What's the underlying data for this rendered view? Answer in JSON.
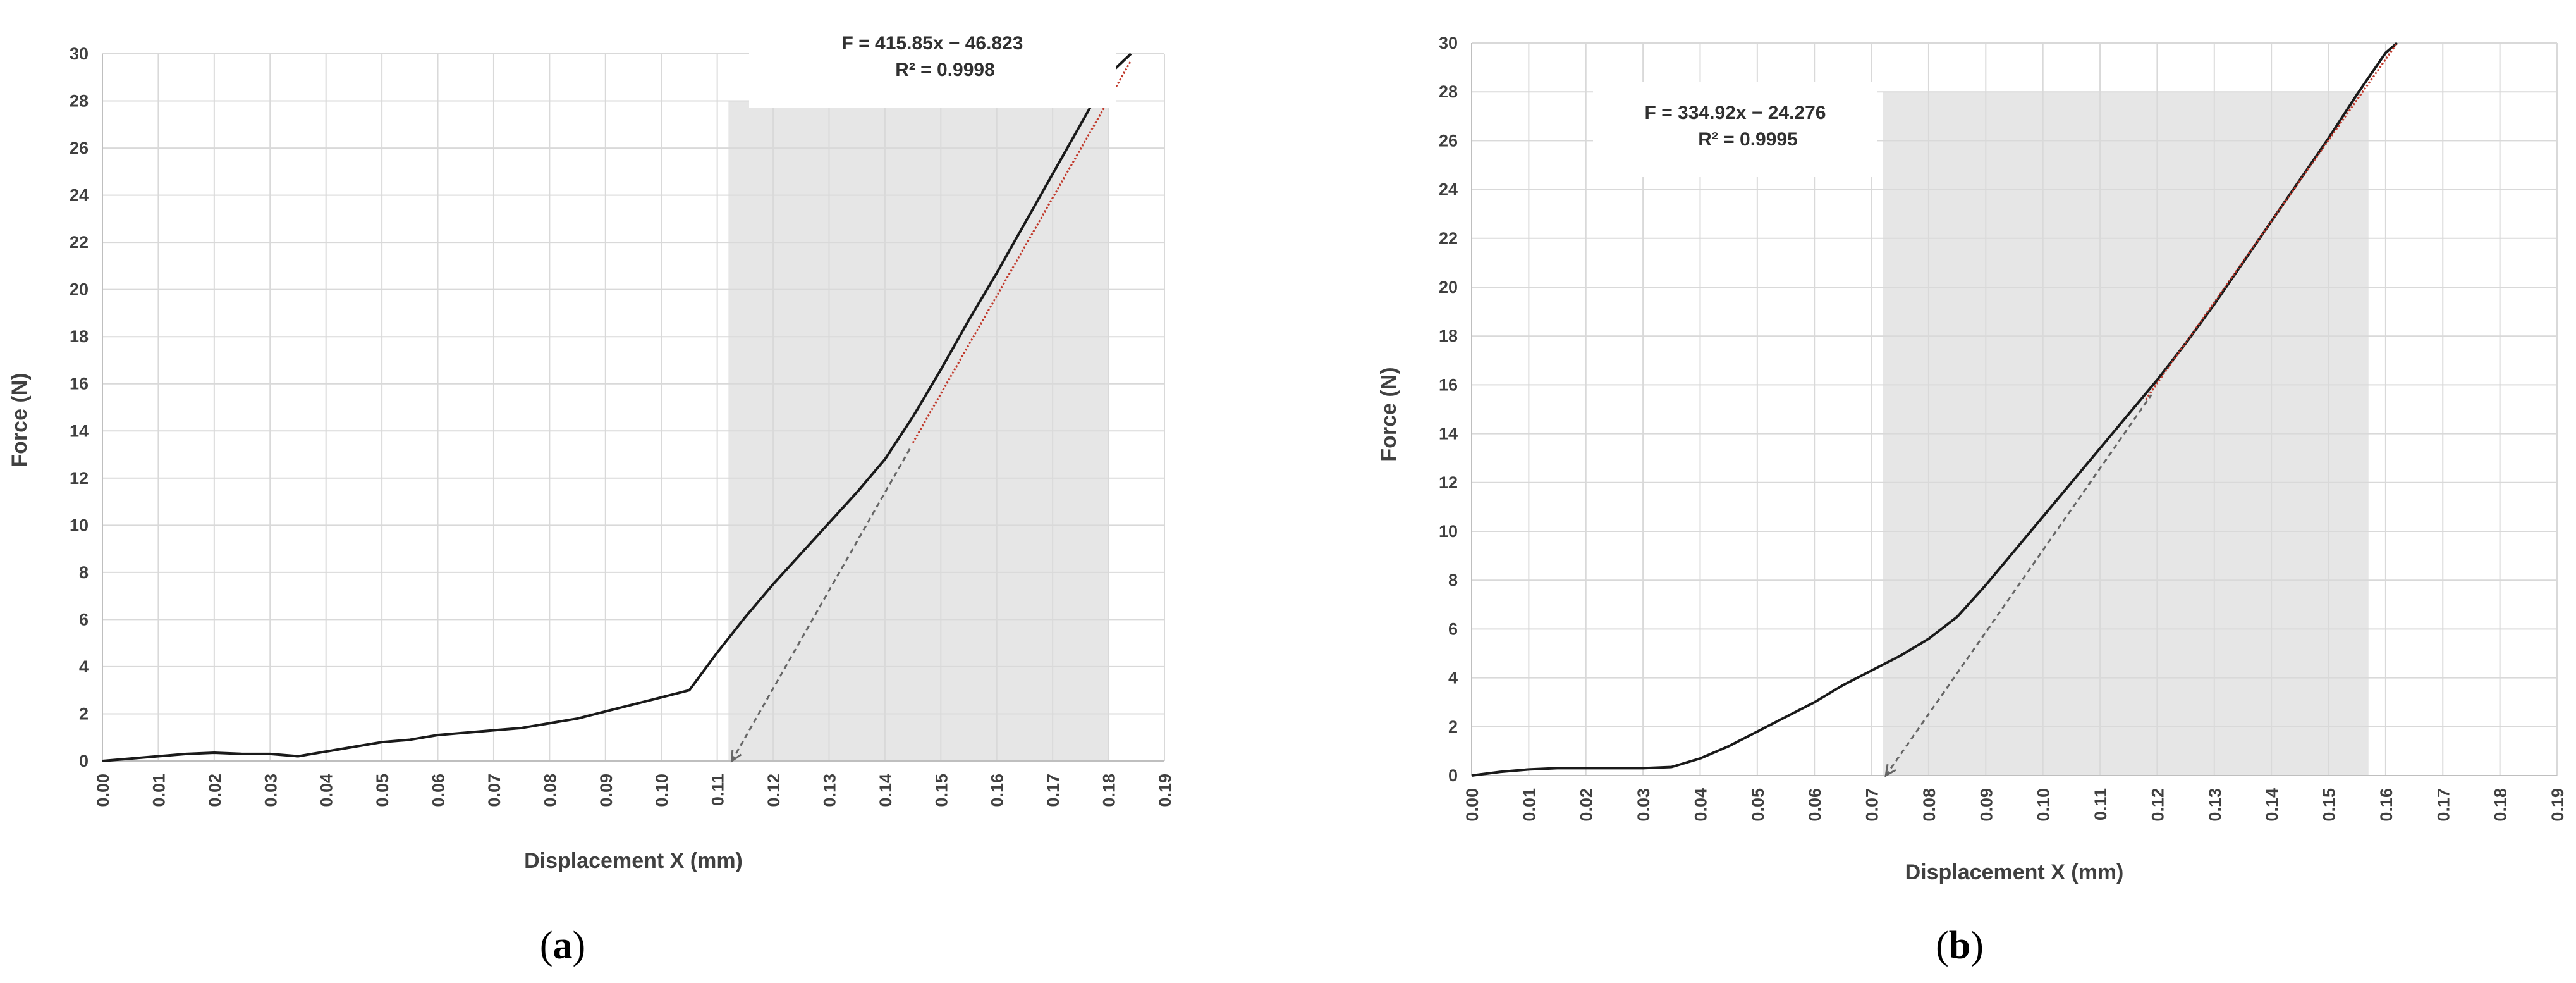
{
  "chart_data": [
    {
      "type": "line",
      "panel_label": "(a)",
      "panel_label_parts": {
        "open": "(",
        "letter": "a",
        "close": ")"
      },
      "xlabel": "Displacement X (mm)",
      "ylabel": "Force (N)",
      "xlim": [
        0.0,
        0.19
      ],
      "ylim": [
        0,
        30
      ],
      "x_ticks": [
        "0.00",
        "0.01",
        "0.02",
        "0.03",
        "0.04",
        "0.05",
        "0.06",
        "0.07",
        "0.08",
        "0.09",
        "0.10",
        "0.11",
        "0.12",
        "0.13",
        "0.14",
        "0.15",
        "0.16",
        "0.17",
        "0.18",
        "0.19"
      ],
      "y_ticks": [
        "0",
        "2",
        "4",
        "6",
        "8",
        "10",
        "12",
        "14",
        "16",
        "18",
        "20",
        "22",
        "24",
        "26",
        "28",
        "30"
      ],
      "grid": true,
      "shaded_region_x": [
        0.112,
        0.18
      ],
      "shaded_region_y": [
        0,
        28
      ],
      "annotation": {
        "equation": "F = 415.85x − 46.823",
        "r2": "R² = 0.9998"
      },
      "series": [
        {
          "role": "measured",
          "color": "#1a1a1a",
          "x": [
            0.0,
            0.005,
            0.01,
            0.015,
            0.02,
            0.025,
            0.03,
            0.035,
            0.04,
            0.045,
            0.05,
            0.055,
            0.06,
            0.065,
            0.07,
            0.075,
            0.08,
            0.085,
            0.09,
            0.095,
            0.1,
            0.105,
            0.11,
            0.115,
            0.12,
            0.125,
            0.13,
            0.135,
            0.14,
            0.145,
            0.15,
            0.155,
            0.16,
            0.165,
            0.17,
            0.175,
            0.18,
            0.184
          ],
          "y": [
            0.0,
            0.1,
            0.2,
            0.3,
            0.35,
            0.3,
            0.3,
            0.2,
            0.4,
            0.6,
            0.8,
            0.9,
            1.1,
            1.2,
            1.3,
            1.4,
            1.6,
            1.8,
            2.1,
            2.4,
            2.7,
            3.0,
            4.6,
            6.1,
            7.5,
            8.8,
            10.1,
            11.4,
            12.8,
            14.6,
            16.6,
            18.7,
            20.7,
            22.8,
            24.9,
            27.0,
            29.1,
            30.0
          ]
        },
        {
          "role": "linear-fit",
          "color": "#c0392b",
          "x": [
            0.145,
            0.184
          ],
          "y": [
            13.5,
            29.7
          ]
        },
        {
          "role": "extension",
          "color": "#666666",
          "dashed": true,
          "x": [
            0.1126,
            0.1446
          ],
          "y": [
            0.0,
            13.3
          ]
        }
      ]
    },
    {
      "type": "line",
      "panel_label": "(b)",
      "panel_label_parts": {
        "open": "(",
        "letter": "b",
        "close": ")"
      },
      "xlabel": "Displacement X (mm)",
      "ylabel": "Force (N)",
      "xlim": [
        0.0,
        0.19
      ],
      "ylim": [
        0,
        30
      ],
      "x_ticks": [
        "0.00",
        "0.01",
        "0.02",
        "0.03",
        "0.04",
        "0.05",
        "0.06",
        "0.07",
        "0.08",
        "0.09",
        "0.10",
        "0.11",
        "0.12",
        "0.13",
        "0.14",
        "0.15",
        "0.16",
        "0.17",
        "0.18",
        "0.19"
      ],
      "y_ticks": [
        "0",
        "2",
        "4",
        "6",
        "8",
        "10",
        "12",
        "14",
        "16",
        "18",
        "20",
        "22",
        "24",
        "26",
        "28",
        "30"
      ],
      "grid": true,
      "shaded_region_x": [
        0.072,
        0.157
      ],
      "shaded_region_y": [
        0,
        28
      ],
      "annotation": {
        "equation": "F = 334.92x − 24.276",
        "r2": "R² = 0.9995"
      },
      "series": [
        {
          "role": "measured",
          "color": "#1a1a1a",
          "x": [
            0.0,
            0.005,
            0.01,
            0.015,
            0.02,
            0.025,
            0.03,
            0.035,
            0.04,
            0.045,
            0.05,
            0.055,
            0.06,
            0.065,
            0.07,
            0.075,
            0.08,
            0.085,
            0.09,
            0.095,
            0.1,
            0.105,
            0.11,
            0.115,
            0.12,
            0.125,
            0.13,
            0.135,
            0.14,
            0.145,
            0.15,
            0.155,
            0.16,
            0.162
          ],
          "y": [
            0.0,
            0.15,
            0.25,
            0.3,
            0.3,
            0.3,
            0.3,
            0.35,
            0.7,
            1.2,
            1.8,
            2.4,
            3.0,
            3.7,
            4.3,
            4.9,
            5.6,
            6.5,
            7.8,
            9.2,
            10.6,
            12.0,
            13.4,
            14.8,
            16.2,
            17.7,
            19.3,
            21.0,
            22.7,
            24.4,
            26.1,
            27.9,
            29.6,
            30.0
          ]
        },
        {
          "role": "linear-fit",
          "color": "#c0392b",
          "x": [
            0.118,
            0.162
          ],
          "y": [
            15.4,
            30.0
          ]
        },
        {
          "role": "extension",
          "color": "#666666",
          "dashed": true,
          "x": [
            0.0725,
            0.119
          ],
          "y": [
            0.0,
            15.6
          ]
        }
      ]
    }
  ]
}
